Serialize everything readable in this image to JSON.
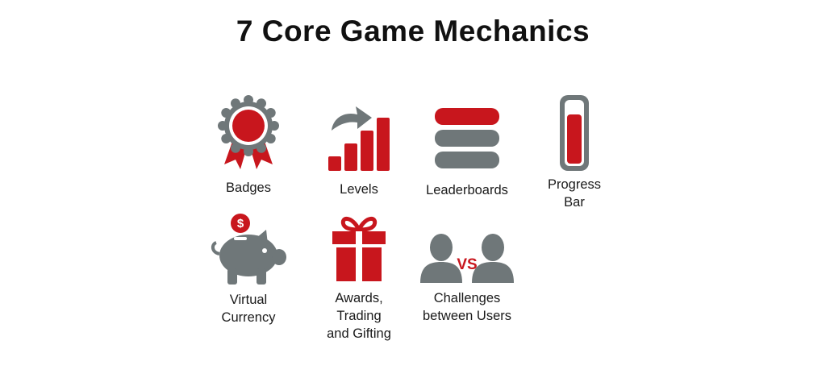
{
  "title": "7 Core Game Mechanics",
  "colors": {
    "accent_red": "#c8161d",
    "icon_grey": "#6f7779"
  },
  "mechanics": [
    {
      "label": "Badges",
      "icon": "badge-rosette-icon"
    },
    {
      "label": "Levels",
      "icon": "levels-bar-chart-icon"
    },
    {
      "label": "Leaderboards",
      "icon": "leaderboard-stack-icon"
    },
    {
      "label": "Progress\nBar",
      "icon": "progress-bar-icon"
    },
    {
      "label": "Virtual\nCurrency",
      "icon": "piggy-bank-icon"
    },
    {
      "label": "Awards,\nTrading\nand Gifting",
      "icon": "gift-box-icon"
    },
    {
      "label": "Challenges\nbetween Users",
      "icon": "users-versus-icon",
      "vs_text": "VS"
    }
  ]
}
